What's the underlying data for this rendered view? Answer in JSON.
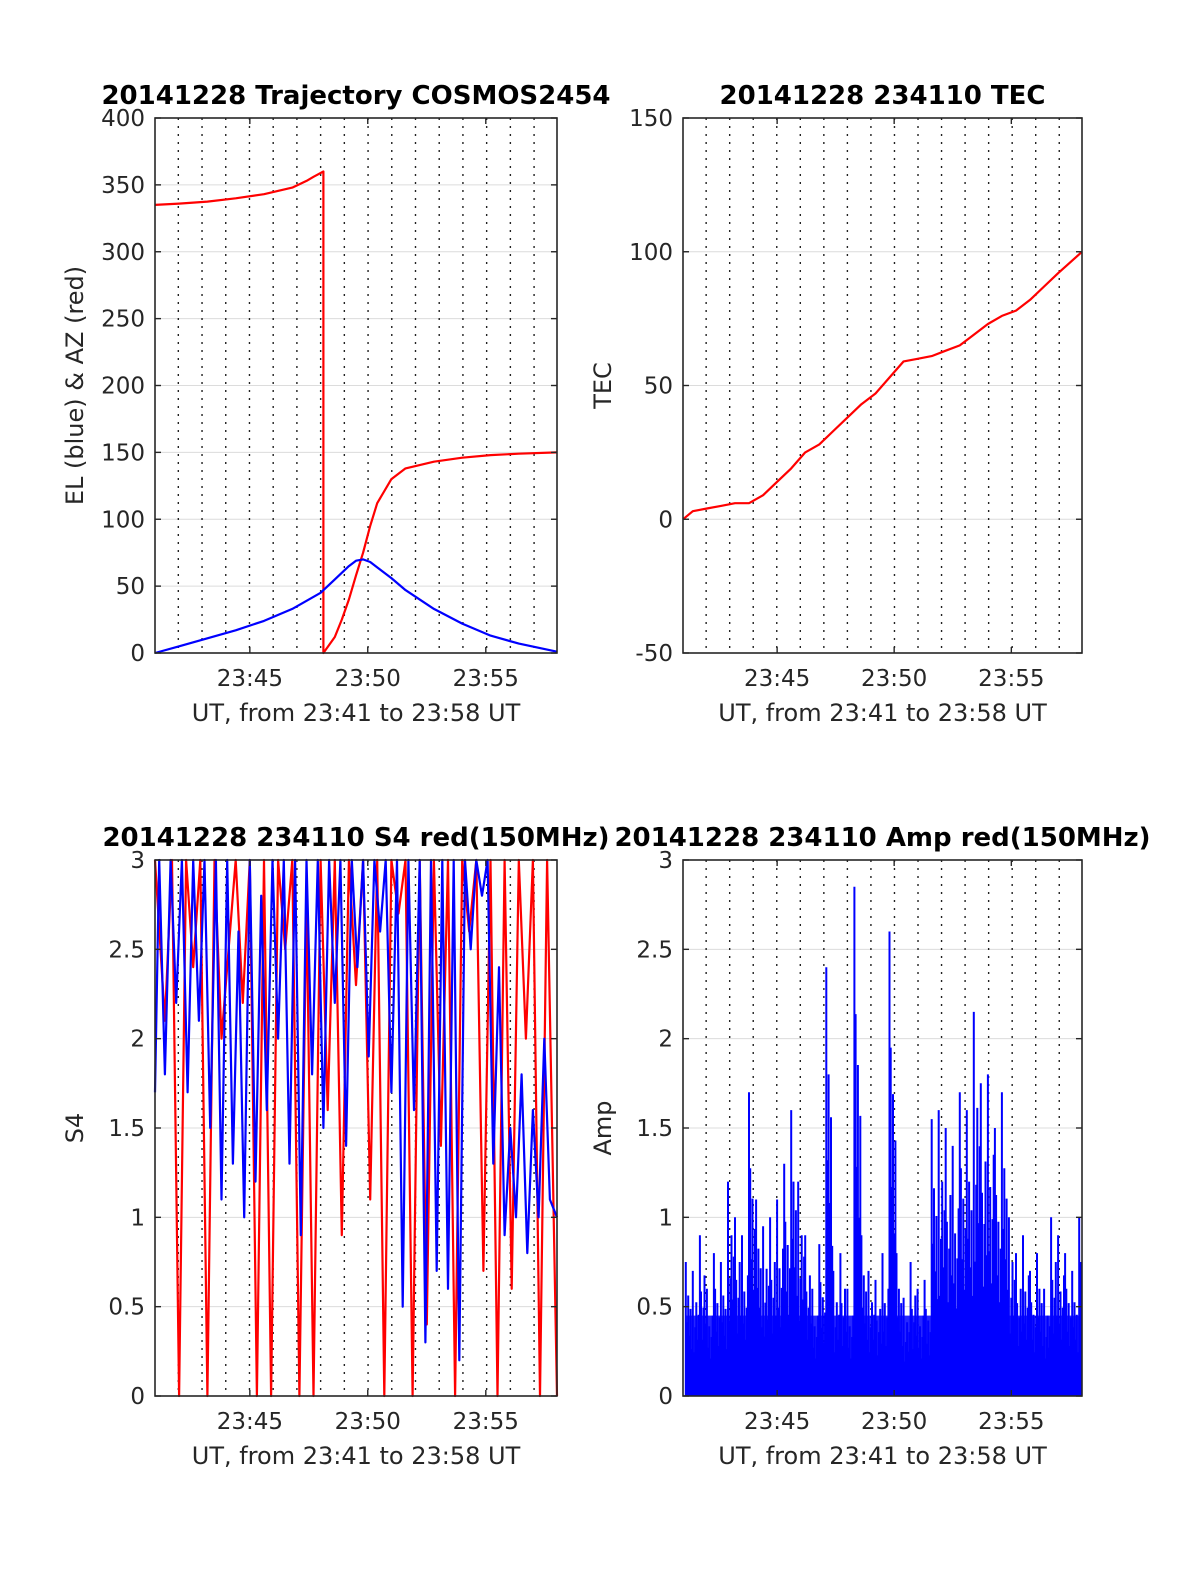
{
  "chart_data": [
    {
      "type": "line",
      "title": "20141228 Trajectory COSMOS2454",
      "xlabel": "UT, from 23:41 to 23:58 UT",
      "ylabel": "EL (blue) & AZ (red)",
      "xlim": [
        23.683,
        23.967
      ],
      "ylim": [
        0,
        400
      ],
      "xticks": [
        {
          "value": 23.75,
          "label": "23:45"
        },
        {
          "value": 23.8333,
          "label": "23:50"
        },
        {
          "value": 23.9167,
          "label": "23:55"
        }
      ],
      "yticks": [
        0,
        50,
        100,
        150,
        200,
        250,
        300,
        350,
        400
      ],
      "grid": true,
      "series": [
        {
          "color": "#ff0000",
          "x": [
            23.683,
            23.7,
            23.72,
            23.74,
            23.76,
            23.78,
            23.79,
            23.795,
            23.802,
            23.802,
            23.81,
            23.815,
            23.82,
            23.825,
            23.83,
            23.835,
            23.84,
            23.85,
            23.86,
            23.88,
            23.9,
            23.92,
            23.94,
            23.967
          ],
          "y": [
            335,
            336,
            337.5,
            340,
            343,
            348,
            353,
            356,
            360,
            0,
            12,
            25,
            40,
            58,
            75,
            95,
            112,
            130,
            138,
            143,
            146,
            148,
            149,
            150
          ]
        },
        {
          "color": "#0000ff",
          "x": [
            23.683,
            23.7,
            23.72,
            23.74,
            23.76,
            23.78,
            23.8,
            23.81,
            23.82,
            23.825,
            23.83,
            23.835,
            23.84,
            23.85,
            23.86,
            23.88,
            23.9,
            23.92,
            23.94,
            23.967
          ],
          "y": [
            0,
            5,
            11,
            17,
            24,
            33,
            45,
            55,
            65,
            69,
            70,
            68,
            64,
            56,
            47,
            33,
            22,
            13,
            7,
            1
          ]
        }
      ]
    },
    {
      "type": "line",
      "title": "20141228 234110 TEC",
      "xlabel": "UT, from 23:41 to 23:58 UT",
      "ylabel": "TEC",
      "xlim": [
        23.683,
        23.967
      ],
      "ylim": [
        -50,
        150
      ],
      "xticks": [
        {
          "value": 23.75,
          "label": "23:45"
        },
        {
          "value": 23.8333,
          "label": "23:50"
        },
        {
          "value": 23.9167,
          "label": "23:55"
        }
      ],
      "yticks": [
        -50,
        0,
        50,
        100,
        150
      ],
      "grid": true,
      "series": [
        {
          "color": "#ff0000",
          "x": [
            23.683,
            23.69,
            23.7,
            23.71,
            23.72,
            23.73,
            23.74,
            23.75,
            23.76,
            23.77,
            23.78,
            23.79,
            23.8,
            23.81,
            23.82,
            23.83,
            23.84,
            23.85,
            23.86,
            23.87,
            23.88,
            23.89,
            23.9,
            23.91,
            23.92,
            23.93,
            23.94,
            23.95,
            23.967
          ],
          "y": [
            0,
            3,
            4,
            5,
            6,
            6,
            9,
            14,
            19,
            25,
            28,
            33,
            38,
            43,
            47,
            53,
            59,
            60,
            61,
            63,
            65,
            69,
            73,
            76,
            78,
            82,
            87,
            92,
            100
          ]
        }
      ]
    },
    {
      "type": "line",
      "title": "20141228 234110 S4 red(150MHz)",
      "xlabel": "UT, from 23:41 to 23:58 UT",
      "ylabel": "S4",
      "xlim": [
        23.683,
        23.967
      ],
      "ylim": [
        0,
        3
      ],
      "xticks": [
        {
          "value": 23.75,
          "label": "23:45"
        },
        {
          "value": 23.8333,
          "label": "23:50"
        },
        {
          "value": 23.9167,
          "label": "23:55"
        }
      ],
      "yticks": [
        0,
        0.5,
        1,
        1.5,
        2,
        2.5,
        3
      ],
      "grid": true,
      "series": [
        {
          "color": "#ff0000",
          "x": [
            23.683,
            23.69,
            23.695,
            23.7,
            23.705,
            23.71,
            23.715,
            23.72,
            23.725,
            23.73,
            23.74,
            23.745,
            23.75,
            23.755,
            23.76,
            23.765,
            23.77,
            23.775,
            23.78,
            23.785,
            23.79,
            23.795,
            23.8,
            23.805,
            23.81,
            23.815,
            23.82,
            23.825,
            23.83,
            23.835,
            23.84,
            23.845,
            23.85,
            23.855,
            23.86,
            23.865,
            23.87,
            23.875,
            23.88,
            23.885,
            23.89,
            23.895,
            23.9,
            23.905,
            23.91,
            23.915,
            23.92,
            23.925,
            23.93,
            23.935,
            23.94,
            23.945,
            23.95,
            23.955,
            23.96,
            23.967
          ],
          "y": [
            3,
            2.1,
            3,
            0,
            3,
            2.4,
            3,
            0,
            3,
            2.0,
            3,
            2.2,
            3,
            0,
            3,
            0,
            3,
            2.5,
            3,
            0,
            2.8,
            0,
            3,
            1.6,
            3,
            0.9,
            3,
            2.3,
            3,
            1.1,
            3,
            0,
            3,
            2.7,
            3,
            0,
            3,
            0.4,
            3,
            1.4,
            3,
            0,
            3,
            2.6,
            3,
            0.7,
            3,
            0,
            3,
            0.6,
            3,
            2.0,
            3,
            0,
            3,
            0
          ]
        },
        {
          "color": "#0000ff",
          "x": [
            23.683,
            23.686,
            23.69,
            23.694,
            23.698,
            23.702,
            23.706,
            23.71,
            23.714,
            23.718,
            23.722,
            23.726,
            23.73,
            23.734,
            23.738,
            23.742,
            23.746,
            23.75,
            23.754,
            23.758,
            23.762,
            23.766,
            23.77,
            23.774,
            23.778,
            23.782,
            23.786,
            23.79,
            23.794,
            23.798,
            23.802,
            23.806,
            23.81,
            23.814,
            23.818,
            23.822,
            23.826,
            23.83,
            23.834,
            23.838,
            23.842,
            23.846,
            23.85,
            23.854,
            23.858,
            23.862,
            23.866,
            23.87,
            23.874,
            23.878,
            23.882,
            23.886,
            23.89,
            23.894,
            23.898,
            23.902,
            23.906,
            23.91,
            23.914,
            23.918,
            23.922,
            23.926,
            23.93,
            23.934,
            23.938,
            23.942,
            23.946,
            23.95,
            23.954,
            23.958,
            23.962,
            23.967
          ],
          "y": [
            1.7,
            3,
            1.8,
            3,
            2.2,
            3,
            1.7,
            3,
            2.1,
            3,
            1.5,
            3,
            1.1,
            3,
            1.3,
            2.6,
            1.0,
            3,
            1.2,
            2.8,
            1.6,
            3,
            2.0,
            3,
            1.3,
            3,
            0.9,
            3,
            1.8,
            3,
            1.5,
            3,
            2.2,
            3,
            1.4,
            3,
            2.4,
            3,
            1.9,
            3,
            2.6,
            3,
            1.7,
            3,
            0.5,
            3,
            1.6,
            3,
            0.3,
            3,
            0.7,
            3,
            0.6,
            3,
            0.2,
            3,
            2.5,
            3,
            2.8,
            3,
            1.3,
            2.4,
            0.9,
            1.5,
            1.0,
            1.8,
            0.8,
            1.6,
            1.0,
            2.0,
            1.1,
            1.0
          ]
        }
      ]
    },
    {
      "type": "bar",
      "title": "20141228 234110 Amp red(150MHz)",
      "xlabel": "UT, from 23:41 to 23:58 UT",
      "ylabel": "Amp",
      "xlim": [
        23.683,
        23.967
      ],
      "ylim": [
        0,
        3
      ],
      "xticks": [
        {
          "value": 23.75,
          "label": "23:45"
        },
        {
          "value": 23.8333,
          "label": "23:50"
        },
        {
          "value": 23.9167,
          "label": "23:55"
        }
      ],
      "yticks": [
        0,
        0.5,
        1,
        1.5,
        2,
        2.5,
        3
      ],
      "grid": true,
      "series": [
        {
          "color": "#0000ff",
          "x": [
            23.685,
            23.69,
            23.695,
            23.7,
            23.705,
            23.71,
            23.715,
            23.72,
            23.725,
            23.73,
            23.735,
            23.74,
            23.745,
            23.75,
            23.755,
            23.76,
            23.765,
            23.77,
            23.775,
            23.78,
            23.785,
            23.79,
            23.795,
            23.8,
            23.805,
            23.81,
            23.815,
            23.82,
            23.825,
            23.83,
            23.835,
            23.84,
            23.845,
            23.85,
            23.855,
            23.86,
            23.865,
            23.87,
            23.875,
            23.88,
            23.885,
            23.89,
            23.895,
            23.9,
            23.905,
            23.91,
            23.915,
            23.92,
            23.925,
            23.93,
            23.935,
            23.94,
            23.945,
            23.95,
            23.955,
            23.96,
            23.965
          ],
          "y": [
            0.75,
            0.7,
            0.9,
            0.6,
            0.8,
            0.75,
            1.2,
            1.0,
            0.9,
            1.7,
            1.1,
            0.95,
            1.0,
            1.1,
            1.3,
            1.6,
            1.2,
            0.9,
            0.6,
            0.85,
            2.4,
            0.7,
            0.8,
            0.6,
            2.85,
            0.9,
            0.7,
            0.65,
            0.8,
            2.6,
            0.8,
            0.55,
            0.75,
            0.6,
            0.65,
            1.55,
            1.6,
            1.5,
            1.4,
            1.7,
            1.6,
            2.15,
            1.75,
            1.8,
            1.5,
            1.7,
            1.0,
            0.8,
            0.9,
            0.7,
            0.8,
            0.6,
            1.0,
            0.9,
            0.8,
            0.7,
            1.0
          ]
        }
      ]
    }
  ]
}
